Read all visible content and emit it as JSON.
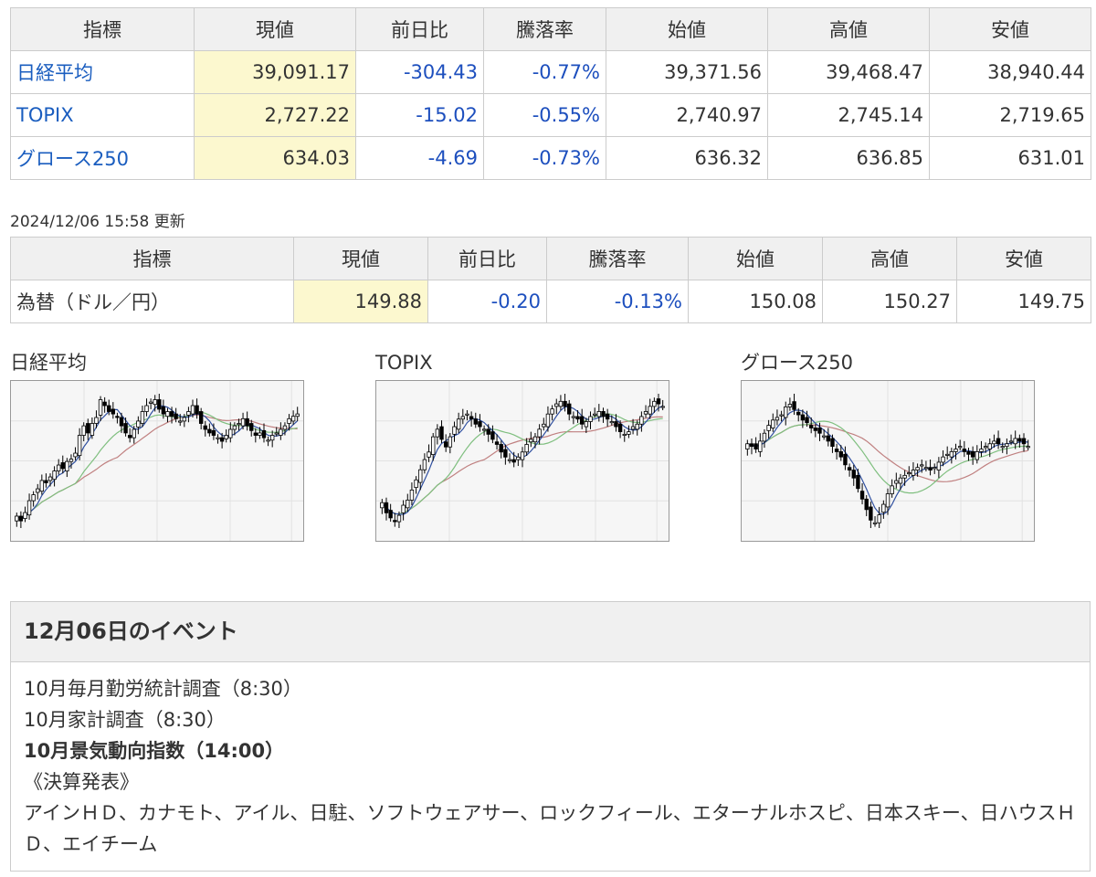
{
  "indices": {
    "headers": [
      "指標",
      "現値",
      "前日比",
      "騰落率",
      "始値",
      "高値",
      "安値"
    ],
    "rows": [
      {
        "name": "日経平均",
        "current": "39,091.17",
        "change": "-304.43",
        "rate": "-0.77%",
        "open": "39,371.56",
        "high": "39,468.47",
        "low": "38,940.44"
      },
      {
        "name": "TOPIX",
        "current": "2,727.22",
        "change": "-15.02",
        "rate": "-0.55%",
        "open": "2,740.97",
        "high": "2,745.14",
        "low": "2,719.65"
      },
      {
        "name": "グロース250",
        "current": "634.03",
        "change": "-4.69",
        "rate": "-0.73%",
        "open": "636.32",
        "high": "636.85",
        "low": "631.01"
      }
    ],
    "colors": {
      "negative": "#1d4fbe",
      "link": "#1a5dbf",
      "current_bg": "#fcf8cf"
    }
  },
  "updated": "2024/12/06 15:58 更新",
  "fx": {
    "headers": [
      "指標",
      "現値",
      "前日比",
      "騰落率",
      "始値",
      "高値",
      "安値"
    ],
    "row": {
      "name": "為替（ドル／円）",
      "current": "149.88",
      "change": "-0.20",
      "rate": "-0.13%",
      "open": "150.08",
      "high": "150.27",
      "low": "149.75"
    }
  },
  "charts": [
    {
      "title": "日経平均",
      "closes": [
        42,
        38,
        45,
        55,
        60,
        65,
        72,
        70,
        75,
        80,
        85,
        82,
        88,
        90,
        95,
        110,
        118,
        112,
        120,
        125,
        140,
        135,
        130,
        128,
        125,
        118,
        112,
        108,
        115,
        122,
        130,
        135,
        138,
        140,
        132,
        128,
        130,
        126,
        124,
        122,
        125,
        130,
        135,
        128,
        120,
        115,
        112,
        110,
        108,
        105,
        110,
        115,
        118,
        120,
        124,
        118,
        114,
        110,
        112,
        108,
        106,
        110,
        112,
        115,
        118,
        124,
        126,
        128
      ]
    },
    {
      "title": "TOPIX",
      "closes": [
        60,
        52,
        48,
        45,
        50,
        58,
        62,
        70,
        78,
        86,
        94,
        100,
        112,
        118,
        110,
        104,
        112,
        120,
        126,
        128,
        130,
        126,
        122,
        120,
        118,
        114,
        110,
        106,
        100,
        96,
        94,
        92,
        96,
        100,
        106,
        110,
        112,
        118,
        122,
        130,
        134,
        138,
        140,
        136,
        130,
        128,
        126,
        122,
        124,
        128,
        130,
        132,
        128,
        126,
        124,
        120,
        116,
        114,
        116,
        120,
        122,
        128,
        132,
        136,
        140,
        138,
        136
      ]
    },
    {
      "title": "グロース250",
      "closes": [
        110,
        108,
        106,
        112,
        118,
        124,
        128,
        130,
        132,
        138,
        140,
        136,
        132,
        128,
        126,
        122,
        120,
        118,
        116,
        112,
        108,
        104,
        100,
        94,
        90,
        84,
        76,
        68,
        60,
        52,
        50,
        56,
        64,
        72,
        78,
        82,
        84,
        86,
        88,
        90,
        92,
        94,
        92,
        90,
        92,
        96,
        100,
        102,
        104,
        106,
        108,
        104,
        102,
        100,
        104,
        106,
        108,
        110,
        112,
        110,
        108,
        110,
        112,
        114,
        112,
        110,
        108
      ]
    }
  ],
  "events": {
    "title": "12月06日のイベント",
    "items": [
      {
        "text": "10月毎月勤労統計調査（8:30）",
        "bold": false
      },
      {
        "text": "10月家計調査（8:30）",
        "bold": false
      },
      {
        "text": "10月景気動向指数（14:00）",
        "bold": true
      },
      {
        "text": "《決算発表》",
        "bold": false
      },
      {
        "text": "アインＨＤ、カナモト、アイル、日駐、ソフトウェアサー、ロックフィール、エターナルホスピ、日本スキー、日ハウスＨＤ、エイチーム",
        "bold": false
      }
    ]
  }
}
